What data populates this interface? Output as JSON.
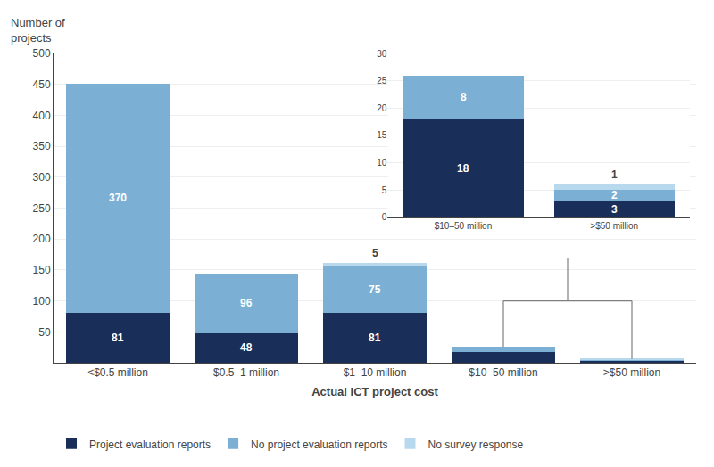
{
  "chart_data": [
    {
      "type": "bar",
      "stacked": true,
      "categories": [
        "<$0.5 million",
        "$0.5–1 million",
        "$1–10 million",
        "$10–50 million",
        ">$50 million"
      ],
      "series": [
        {
          "name": "Project evaluation reports",
          "color": "#1a2e5a",
          "values": [
            81,
            48,
            81,
            18,
            3
          ],
          "value_labels": [
            "81",
            "48",
            "81",
            null,
            null
          ]
        },
        {
          "name": "No project evaluation reports",
          "color": "#7bafd4",
          "values": [
            370,
            96,
            75,
            8,
            2
          ],
          "value_labels": [
            "370",
            "96",
            "75",
            null,
            null
          ]
        },
        {
          "name": "No survey response",
          "color": "#b8d9ed",
          "values": [
            0,
            0,
            5,
            0,
            1
          ],
          "value_labels": [
            null,
            null,
            "5",
            null,
            null
          ]
        }
      ],
      "ylabel": "Number of\nprojects",
      "xlabel": "Actual ICT project cost",
      "ylim": [
        0,
        500
      ],
      "yticks": [
        50,
        100,
        150,
        200,
        250,
        300,
        350,
        400,
        450,
        500
      ],
      "grid": true,
      "legend": "bottom",
      "data_labels": true
    },
    {
      "type": "bar",
      "stacked": true,
      "categories": [
        "$10–50 million",
        ">$50 million"
      ],
      "series": [
        {
          "color": "#1a2e5a",
          "values": [
            18,
            3
          ],
          "value_labels": [
            "18",
            "3"
          ]
        },
        {
          "color": "#7bafd4",
          "values": [
            8,
            2
          ],
          "value_labels": [
            "8",
            "2"
          ]
        },
        {
          "color": "#b8d9ed",
          "values": [
            0,
            1
          ],
          "value_labels": [
            null,
            "1"
          ]
        }
      ],
      "ylim": [
        0,
        30
      ],
      "yticks": [
        0,
        5,
        10,
        15,
        20,
        25,
        30
      ],
      "grid": true,
      "data_labels": true
    }
  ]
}
